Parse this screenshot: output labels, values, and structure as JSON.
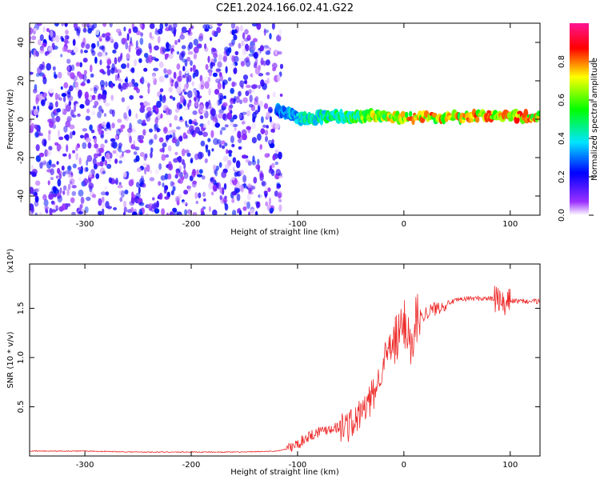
{
  "title": "C2E1.2024.166.02.41.G22",
  "chart_data": [
    {
      "type": "heatmap",
      "xlabel": "Height of straight line (km)",
      "ylabel": "Frequency (Hz)",
      "xlim": [
        -352,
        128
      ],
      "ylim": [
        -50,
        50
      ],
      "xticks": [
        -300,
        -200,
        -100,
        0,
        100
      ],
      "yticks": [
        -40,
        -20,
        0,
        20,
        40
      ],
      "noise_region_x": [
        -352,
        -115
      ],
      "noise_level_range": [
        0.0,
        0.25
      ],
      "signal_band": [
        {
          "x": -120,
          "freq": 5,
          "amp": 0.35
        },
        {
          "x": -100,
          "freq": 1,
          "amp": 0.45
        },
        {
          "x": -90,
          "freq": 0,
          "amp": 0.5
        },
        {
          "x": -70,
          "freq": 2,
          "amp": 0.55
        },
        {
          "x": -50,
          "freq": 1,
          "amp": 0.6
        },
        {
          "x": -30,
          "freq": 2,
          "amp": 0.75
        },
        {
          "x": 0,
          "freq": 1,
          "amp": 0.85
        },
        {
          "x": 50,
          "freq": 1,
          "amp": 0.85
        },
        {
          "x": 90,
          "freq": 2,
          "amp": 0.9
        },
        {
          "x": 128,
          "freq": 1,
          "amp": 0.85
        }
      ],
      "colorbar": {
        "label": "Normalized spectral amplitude",
        "range": [
          0.0,
          1.0
        ],
        "ticks": [
          "0.0",
          "0.2",
          "0.4",
          "0.6",
          "0.8"
        ],
        "tick_values": [
          0.0,
          0.2,
          0.4,
          0.6,
          0.8
        ],
        "colors": [
          "#ffffff",
          "#9b30ff",
          "#0000ff",
          "#00e5ff",
          "#00ff00",
          "#ffff00",
          "#ff0000",
          "#ff1493"
        ]
      }
    },
    {
      "type": "line",
      "xlabel": "Height of straight line (km)",
      "ylabel": "SNR (10 * v/v)",
      "scale_label": "(x10⁴)",
      "xlim": [
        -352,
        128
      ],
      "ylim": [
        0,
        1.95
      ],
      "xticks": [
        -300,
        -200,
        -100,
        0,
        100
      ],
      "yticks": [
        0.5,
        1.0,
        1.5
      ],
      "ytick_labels": [
        "0.5",
        "1.0",
        "1.5"
      ],
      "color": "#ee2a2a",
      "series": [
        {
          "x": [
            -352,
            -300,
            -250,
            -200,
            -150,
            -120,
            -110,
            -100,
            -90,
            -80,
            -70,
            -60,
            -50,
            -45,
            -40,
            -35,
            -30,
            -25,
            -20,
            -15,
            -10,
            -5,
            0,
            5,
            9,
            10,
            15,
            20,
            30,
            40,
            50,
            60,
            70,
            80,
            90,
            95,
            100,
            110,
            128
          ],
          "y": [
            0.05,
            0.05,
            0.04,
            0.04,
            0.04,
            0.05,
            0.07,
            0.12,
            0.2,
            0.25,
            0.28,
            0.3,
            0.32,
            0.35,
            0.45,
            0.5,
            0.6,
            0.72,
            0.95,
            1.05,
            1.12,
            1.2,
            1.35,
            1.3,
            0.9,
            1.4,
            1.42,
            1.45,
            1.5,
            1.55,
            1.58,
            1.6,
            1.6,
            1.6,
            1.58,
            1.5,
            1.58,
            1.57,
            1.57
          ]
        }
      ]
    }
  ]
}
